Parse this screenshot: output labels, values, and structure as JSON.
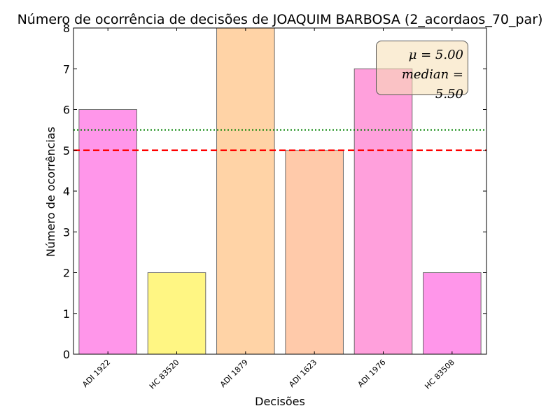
{
  "chart_data": {
    "type": "bar",
    "title": "Número de ocorrência de decisões de JOAQUIM BARBOSA (2_acordaos_70_par)",
    "xlabel": "Decisões",
    "ylabel": "Número de ocorrências",
    "categories": [
      "ADI 1922",
      "HC 83520",
      "ADI 1879",
      "ADI 1623",
      "ADI 1976",
      "HC 83508"
    ],
    "values": [
      6,
      2,
      8,
      5,
      7,
      2
    ],
    "bar_colors": [
      "#ff96ea",
      "#fff683",
      "#ffd3a6",
      "#ffcaaa",
      "#ffa0dc",
      "#ff96ea"
    ],
    "ylim": [
      0,
      8
    ],
    "yticks": [
      "0",
      "1",
      "2",
      "3",
      "4",
      "5",
      "6",
      "7",
      "8"
    ],
    "reference_lines": [
      {
        "name": "mean",
        "value": 5.0,
        "color": "#ff0000",
        "style": "dashed"
      },
      {
        "name": "median",
        "value": 5.5,
        "color": "#008000",
        "style": "dotted"
      }
    ],
    "stats_box": {
      "mean_label": "μ = 5.00",
      "median_label": "median = 5.50",
      "placement": "top-right"
    },
    "grid": false
  }
}
